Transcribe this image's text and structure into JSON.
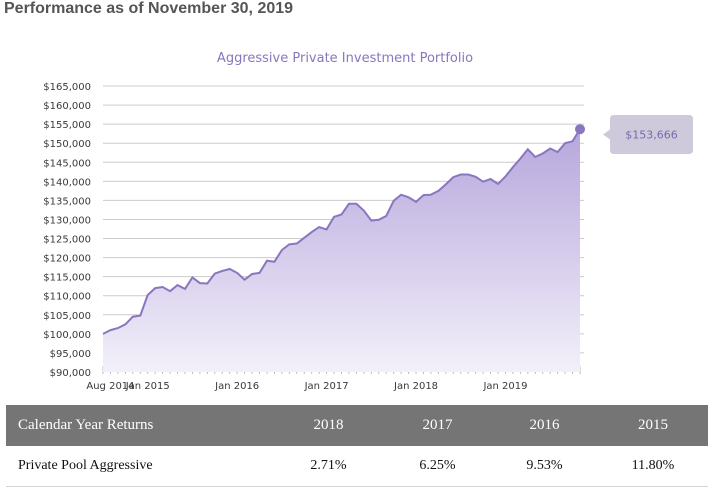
{
  "page": {
    "title": "Performance as of November 30, 2019"
  },
  "chart_data": {
    "type": "area",
    "title": "Aggressive Private Investment Portfolio",
    "xlabel": "",
    "ylabel": "",
    "ylim": [
      90000,
      165000
    ],
    "y_ticks": [
      "$90,000",
      "$95,000",
      "$100,000",
      "$105,000",
      "$110,000",
      "$115,000",
      "$120,000",
      "$125,000",
      "$130,000",
      "$135,000",
      "$140,000",
      "$145,000",
      "$150,000",
      "$155,000",
      "$160,000",
      "$165,000"
    ],
    "x_ticks": [
      "Aug 2014",
      "Jan 2015",
      "Jan 2016",
      "Jan 2017",
      "Jan 2018",
      "Jan 2019"
    ],
    "grid": "horizontal",
    "legend": "none",
    "end_label": "$153,666",
    "colors": {
      "line": "#8a76be",
      "fill_top": "#b6a6dc",
      "fill_bottom": "#f3f0fa",
      "callout": "#cfcadb",
      "grid": "#cccccc"
    },
    "series": [
      {
        "x": [
          "2014-07",
          "2014-08",
          "2014-09",
          "2014-10",
          "2014-11",
          "2014-12",
          "2015-01",
          "2015-02",
          "2015-03",
          "2015-04",
          "2015-05",
          "2015-06",
          "2015-07",
          "2015-08",
          "2015-09",
          "2015-10",
          "2015-11",
          "2015-12",
          "2016-01",
          "2016-02",
          "2016-03",
          "2016-04",
          "2016-05",
          "2016-06",
          "2016-07",
          "2016-08",
          "2016-09",
          "2016-10",
          "2016-11",
          "2016-12",
          "2017-01",
          "2017-02",
          "2017-03",
          "2017-04",
          "2017-05",
          "2017-06",
          "2017-07",
          "2017-08",
          "2017-09",
          "2017-10",
          "2017-11",
          "2017-12",
          "2018-01",
          "2018-02",
          "2018-03",
          "2018-04",
          "2018-05",
          "2018-06",
          "2018-07",
          "2018-08",
          "2018-09",
          "2018-10",
          "2018-11",
          "2018-12",
          "2019-01",
          "2019-02",
          "2019-03",
          "2019-04",
          "2019-05",
          "2019-06",
          "2019-07",
          "2019-08",
          "2019-09",
          "2019-10",
          "2019-11"
        ],
        "values": [
          100000,
          101000,
          101500,
          102500,
          104500,
          104800,
          110200,
          112000,
          112300,
          111200,
          112800,
          111800,
          114800,
          113300,
          113200,
          115800,
          116500,
          117000,
          116000,
          114200,
          115700,
          116000,
          119200,
          118900,
          122000,
          123500,
          123700,
          125200,
          126700,
          128000,
          127400,
          130700,
          131300,
          134100,
          134100,
          132300,
          129700,
          129900,
          130900,
          134900,
          136500,
          135800,
          134600,
          136400,
          136500,
          137500,
          139200,
          141100,
          141800,
          141800,
          141200,
          139900,
          140600,
          139300,
          141300,
          143700,
          146000,
          148400,
          146400,
          147300,
          148600,
          147700,
          150000,
          150500,
          153666
        ]
      }
    ]
  },
  "returns_table": {
    "headers": [
      "Calendar Year Returns",
      "2018",
      "2017",
      "2016",
      "2015"
    ],
    "rows": [
      [
        "Private Pool Aggressive",
        "2.71%",
        "6.25%",
        "9.53%",
        "11.80%"
      ]
    ]
  }
}
